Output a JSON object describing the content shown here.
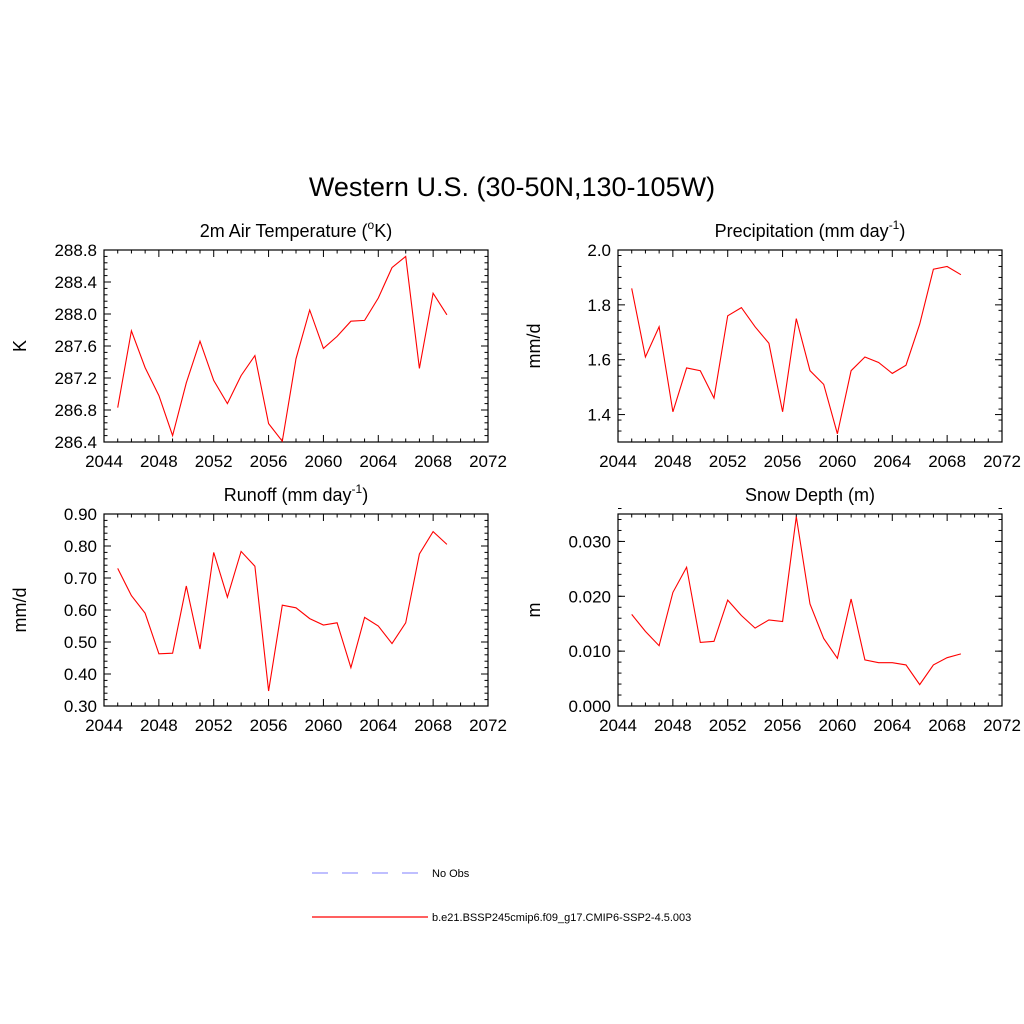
{
  "title": "Western U.S. (30-50N,130-105W)",
  "colors": {
    "model": "#ff0000",
    "obs": "#9999ff"
  },
  "legend": [
    {
      "label": "No Obs",
      "style": "dashed",
      "color": "#9999ff"
    },
    {
      "label": "b.e21.BSSP245cmip6.f09_g17.CMIP6-SSP2-4.5.003",
      "style": "solid",
      "color": "#ff0000"
    }
  ],
  "chart_data": [
    {
      "type": "line",
      "title_main": "2m Air Temperature (",
      "title_sup": "o",
      "title_end": "K)",
      "ylabel": "K",
      "xlim": [
        2044,
        2072
      ],
      "xticks": [
        2044,
        2048,
        2052,
        2056,
        2060,
        2064,
        2068,
        2072
      ],
      "ylim": [
        286.4,
        288.8
      ],
      "yticks": [
        286.4,
        286.8,
        287.2,
        287.6,
        288.0,
        288.4,
        288.8
      ],
      "ytick_decimals": 1,
      "x": [
        2045,
        2046,
        2047,
        2048,
        2049,
        2050,
        2051,
        2052,
        2053,
        2054,
        2055,
        2056,
        2057,
        2058,
        2059,
        2060,
        2061,
        2062,
        2063,
        2064,
        2065,
        2066,
        2067,
        2068,
        2069
      ],
      "series": [
        {
          "values": [
            286.83,
            287.79,
            287.33,
            286.98,
            286.48,
            287.14,
            287.66,
            287.17,
            286.88,
            287.23,
            287.48,
            286.63,
            286.41,
            287.44,
            288.05,
            287.57,
            287.72,
            287.91,
            287.92,
            288.2,
            288.58,
            288.72,
            287.32,
            288.26,
            287.99
          ]
        }
      ]
    },
    {
      "type": "line",
      "title_main": "Precipitation (mm day",
      "title_sup": "-1",
      "title_end": ")",
      "ylabel": "mm/d",
      "xlim": [
        2044,
        2072
      ],
      "xticks": [
        2044,
        2048,
        2052,
        2056,
        2060,
        2064,
        2068,
        2072
      ],
      "ylim": [
        1.3,
        2.0
      ],
      "yticks": [
        1.4,
        1.6,
        1.8,
        2.0
      ],
      "ytick_decimals": 1,
      "x": [
        2045,
        2046,
        2047,
        2048,
        2049,
        2050,
        2051,
        2052,
        2053,
        2054,
        2055,
        2056,
        2057,
        2058,
        2059,
        2060,
        2061,
        2062,
        2063,
        2064,
        2065,
        2066,
        2067,
        2068,
        2069
      ],
      "series": [
        {
          "values": [
            1.86,
            1.61,
            1.72,
            1.41,
            1.57,
            1.56,
            1.46,
            1.76,
            1.79,
            1.72,
            1.66,
            1.41,
            1.75,
            1.56,
            1.51,
            1.33,
            1.56,
            1.61,
            1.59,
            1.55,
            1.58,
            1.73,
            1.93,
            1.94,
            1.91
          ]
        }
      ]
    },
    {
      "type": "line",
      "title_main": "Runoff (mm day",
      "title_sup": "-1",
      "title_end": ")",
      "ylabel": "mm/d",
      "xlim": [
        2044,
        2072
      ],
      "xticks": [
        2044,
        2048,
        2052,
        2056,
        2060,
        2064,
        2068,
        2072
      ],
      "ylim": [
        0.3,
        0.9
      ],
      "yticks": [
        0.3,
        0.4,
        0.5,
        0.6,
        0.7,
        0.8,
        0.9
      ],
      "ytick_decimals": 2,
      "x": [
        2045,
        2046,
        2047,
        2048,
        2049,
        2050,
        2051,
        2052,
        2053,
        2054,
        2055,
        2056,
        2057,
        2058,
        2059,
        2060,
        2061,
        2062,
        2063,
        2064,
        2065,
        2066,
        2067,
        2068,
        2069
      ],
      "series": [
        {
          "values": [
            0.73,
            0.645,
            0.59,
            0.463,
            0.465,
            0.675,
            0.478,
            0.78,
            0.64,
            0.783,
            0.737,
            0.347,
            0.615,
            0.607,
            0.573,
            0.553,
            0.56,
            0.42,
            0.577,
            0.55,
            0.495,
            0.56,
            0.775,
            0.845,
            0.805
          ]
        }
      ]
    },
    {
      "type": "line",
      "title_main": "Snow Depth (m)",
      "title_sup": "",
      "title_end": "",
      "ylabel": "m",
      "xlim": [
        2044,
        2072
      ],
      "xticks": [
        2044,
        2048,
        2052,
        2056,
        2060,
        2064,
        2068,
        2072
      ],
      "ylim": [
        0.0,
        0.035
      ],
      "yticks": [
        0.0,
        0.01,
        0.02,
        0.03
      ],
      "ytick_decimals": 3,
      "x": [
        2045,
        2046,
        2047,
        2048,
        2049,
        2050,
        2051,
        2052,
        2053,
        2054,
        2055,
        2056,
        2057,
        2058,
        2059,
        2060,
        2061,
        2062,
        2063,
        2064,
        2065,
        2066,
        2067,
        2068,
        2069
      ],
      "series": [
        {
          "values": [
            0.0167,
            0.0136,
            0.011,
            0.0207,
            0.0253,
            0.0116,
            0.0118,
            0.0193,
            0.0165,
            0.0142,
            0.0157,
            0.0154,
            0.0345,
            0.0186,
            0.0123,
            0.0087,
            0.0195,
            0.0084,
            0.0079,
            0.0079,
            0.0075,
            0.0039,
            0.0075,
            0.0088,
            0.0095
          ]
        }
      ]
    }
  ]
}
